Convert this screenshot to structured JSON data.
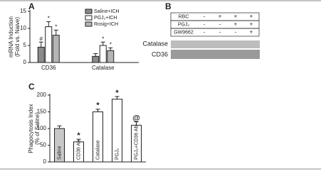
{
  "chart_data": [
    {
      "type": "grouped_bar",
      "panel_label": "A",
      "ylabel": [
        "mRNA Induction",
        "(Fold vs. Naive)"
      ],
      "categories": [
        "CD36",
        "Catalase"
      ],
      "series": [
        {
          "name": "Saline+ICH",
          "color": "#8a8a8a",
          "values": [
            4.5,
            1.8
          ],
          "errors": [
            1.5,
            0.8
          ],
          "markers": [
            "#",
            null
          ]
        },
        {
          "name": "PGJ₂+ICH",
          "color": "#ffffff",
          "values": [
            10.5,
            5
          ],
          "errors": [
            1.5,
            1
          ],
          "markers": [
            "*",
            "*"
          ]
        },
        {
          "name": "Rosig+ICH",
          "color": "#b5b5b5",
          "values": [
            8,
            3.5
          ],
          "errors": [
            1.5,
            0.8
          ],
          "markers": [
            "*",
            "*"
          ]
        }
      ],
      "ylim": [
        0,
        15
      ],
      "yticks": [
        0,
        5,
        10,
        15
      ]
    },
    {
      "type": "bar",
      "panel_label": "C",
      "ylabel": [
        "Phagocytosis Index",
        "(% of Saline)"
      ],
      "categories": [
        "Saline",
        "CD36 Ab",
        "Catalase",
        "PGJ₂",
        "PGJ₂+CD36 Ab"
      ],
      "values": [
        100,
        60,
        150,
        188,
        110
      ],
      "errors": [
        8,
        8,
        8,
        8,
        10
      ],
      "colors": [
        "#c8c8c8",
        "#ffffff",
        "#ffffff",
        "#ffffff",
        "#ffffff"
      ],
      "markers": [
        null,
        "*",
        "*",
        "*",
        "@"
      ],
      "ylim": [
        0,
        200
      ],
      "yticks": [
        0,
        50,
        100,
        150,
        200
      ]
    }
  ],
  "gel": {
    "panel_label": "B",
    "rows": [
      {
        "label": "RBC",
        "cells": [
          "-",
          "+",
          "+",
          "+"
        ]
      },
      {
        "label": "PGJ₂",
        "cells": [
          "-",
          "-",
          "+",
          "+"
        ]
      },
      {
        "label": "GW9662",
        "cells": [
          "-",
          "-",
          "-",
          "+"
        ]
      }
    ],
    "bands": [
      "Catalase",
      "CD36"
    ]
  }
}
